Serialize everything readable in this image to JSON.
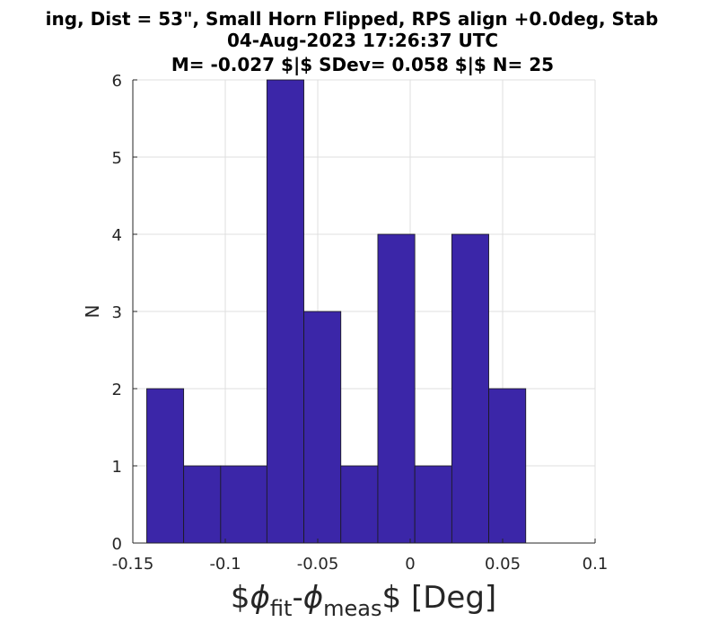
{
  "chart_data": {
    "type": "bar",
    "title_lines": [
      "ing, Dist = 53\", Small Horn Flipped, RPS align +0.0deg, Stab",
      "04-Aug-2023 17:26:37 UTC",
      "M= -0.027 $|$ SDev= 0.058 $|$ N= 25"
    ],
    "ylabel": "N",
    "xlabel": {
      "prefix": "$",
      "phi1": "ϕ",
      "sub1": "fit",
      "dash": "-",
      "phi2": "ϕ",
      "sub2": "meas",
      "suffix": "$ [Deg]"
    },
    "xlim": [
      -0.15,
      0.1
    ],
    "ylim": [
      0,
      6
    ],
    "xticks": [
      -0.15,
      -0.1,
      -0.05,
      0,
      0.05,
      0.1
    ],
    "xtick_labels": [
      "-0.15",
      "-0.1",
      "-0.05",
      "0",
      "0.05",
      "0.1"
    ],
    "yticks": [
      0,
      1,
      2,
      3,
      4,
      5,
      6
    ],
    "ytick_labels": [
      "0",
      "1",
      "2",
      "3",
      "4",
      "5",
      "6"
    ],
    "grid": true,
    "bar_color": "#3b26a8",
    "bin_edges": [
      -0.1425,
      -0.1225,
      -0.1025,
      -0.0775,
      -0.0575,
      -0.0375,
      -0.0175,
      0.0025,
      0.0225,
      0.0425,
      0.0625
    ],
    "bins": [
      {
        "x0": -0.1425,
        "x1": -0.1225,
        "count": 2
      },
      {
        "x0": -0.1225,
        "x1": -0.1025,
        "count": 1
      },
      {
        "x0": -0.1025,
        "x1": -0.0775,
        "count": 1
      },
      {
        "x0": -0.0775,
        "x1": -0.0575,
        "count": 6
      },
      {
        "x0": -0.0575,
        "x1": -0.0375,
        "count": 3
      },
      {
        "x0": -0.0375,
        "x1": -0.0175,
        "count": 1
      },
      {
        "x0": -0.0175,
        "x1": 0.0025,
        "count": 4
      },
      {
        "x0": 0.0025,
        "x1": 0.0225,
        "count": 1
      },
      {
        "x0": 0.0225,
        "x1": 0.0425,
        "count": 4
      },
      {
        "x0": 0.0425,
        "x1": 0.0625,
        "count": 2
      }
    ]
  }
}
